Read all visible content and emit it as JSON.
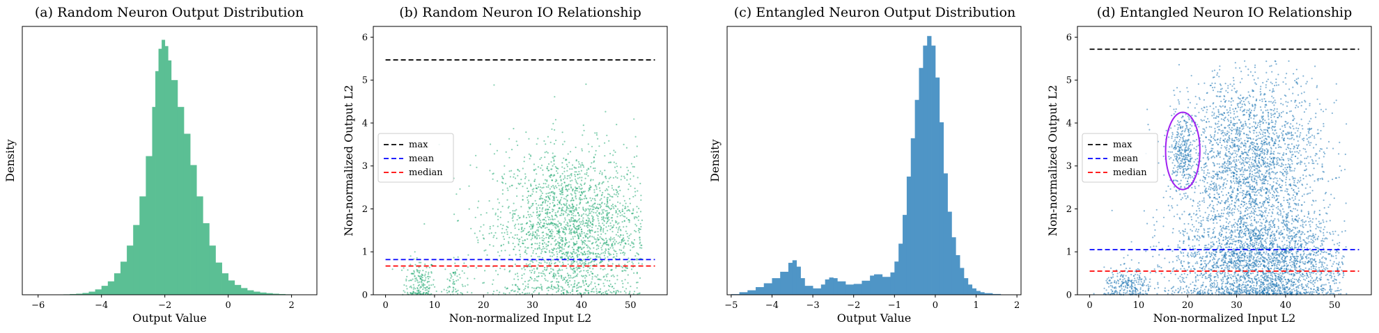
{
  "chart_data": [
    {
      "type": "histogram",
      "title": "(a) Random Neuron Output Distribution",
      "xlabel": "Output Value",
      "ylabel": "Density",
      "xlim": [
        -6.5,
        2.8
      ],
      "xticks": [
        "−6",
        "−4",
        "−2",
        "0",
        "2"
      ],
      "xtick_values": [
        -6,
        -4,
        -2,
        0,
        2
      ],
      "yticks": [],
      "color": "#5bbf94",
      "distribution": {
        "peak_x": -2.1,
        "range": [
          -5.5,
          2.3
        ],
        "description": "unimodal, slight right tail"
      },
      "bins": [
        [
          -5.5,
          0.002
        ],
        [
          -5.2,
          0.005
        ],
        [
          -5.0,
          0.008
        ],
        [
          -4.8,
          0.012
        ],
        [
          -4.6,
          0.02
        ],
        [
          -4.4,
          0.035
        ],
        [
          -4.2,
          0.06
        ],
        [
          -4.0,
          0.1
        ],
        [
          -3.8,
          0.15
        ],
        [
          -3.6,
          0.24
        ],
        [
          -3.4,
          0.37
        ],
        [
          -3.2,
          0.55
        ],
        [
          -3.0,
          0.78
        ],
        [
          -2.8,
          1.1
        ],
        [
          -2.6,
          1.55
        ],
        [
          -2.4,
          2.1
        ],
        [
          -2.3,
          2.5
        ],
        [
          -2.2,
          2.75
        ],
        [
          -2.1,
          2.85
        ],
        [
          -2.0,
          2.78
        ],
        [
          -1.9,
          2.62
        ],
        [
          -1.8,
          2.4
        ],
        [
          -1.6,
          2.1
        ],
        [
          -1.4,
          1.8
        ],
        [
          -1.2,
          1.45
        ],
        [
          -1.0,
          1.1
        ],
        [
          -0.8,
          0.8
        ],
        [
          -0.6,
          0.55
        ],
        [
          -0.4,
          0.36
        ],
        [
          -0.2,
          0.24
        ],
        [
          0.0,
          0.16
        ],
        [
          0.2,
          0.11
        ],
        [
          0.4,
          0.075
        ],
        [
          0.6,
          0.05
        ],
        [
          0.8,
          0.035
        ],
        [
          1.0,
          0.025
        ],
        [
          1.2,
          0.018
        ],
        [
          1.4,
          0.012
        ],
        [
          1.6,
          0.008
        ],
        [
          1.8,
          0.005
        ],
        [
          2.0,
          0.003
        ],
        [
          2.2,
          0.002
        ]
      ],
      "ylim": [
        0,
        3.0
      ]
    },
    {
      "type": "scatter",
      "title": "(b) Random Neuron IO Relationship",
      "xlabel": "Non-normalized Input L2",
      "ylabel": "Non-normalized Output L2",
      "xlim": [
        -2.5,
        57.5
      ],
      "ylim": [
        0,
        6.25
      ],
      "xticks": [
        "0",
        "10",
        "20",
        "30",
        "40",
        "50"
      ],
      "xtick_values": [
        0,
        10,
        20,
        30,
        40,
        50
      ],
      "yticks": [
        "0",
        "1",
        "2",
        "3",
        "4",
        "5",
        "6"
      ],
      "ytick_values": [
        0,
        1,
        2,
        3,
        4,
        5,
        6
      ],
      "color": "#22aa72",
      "hlines": [
        {
          "label": "max",
          "y": 5.47,
          "color": "#000000"
        },
        {
          "label": "mean",
          "y": 0.82,
          "color": "#0000ff"
        },
        {
          "label": "median",
          "y": 0.67,
          "color": "#ff0000"
        }
      ],
      "hline_xrange": [
        0,
        55
      ],
      "legend": [
        "max",
        "mean",
        "median"
      ],
      "legend_position": "center-left",
      "clusters": [
        {
          "x_center": 7,
          "x_spread": 1.6,
          "y_center": 0.25,
          "y_spread": 0.3,
          "n": 180
        },
        {
          "x_center": 14,
          "x_spread": 1.0,
          "y_center": 0.3,
          "y_spread": 0.25,
          "n": 60
        },
        {
          "x_center": 38,
          "x_spread": 8,
          "y_center": 1.5,
          "y_spread": 0.95,
          "n": 2400
        }
      ]
    },
    {
      "type": "histogram",
      "title": "(c) Entangled Neuron Output Distribution",
      "xlabel": "Output Value",
      "ylabel": "Density",
      "xlim": [
        -5.1,
        2.1
      ],
      "xticks": [
        "−5",
        "−4",
        "−3",
        "−2",
        "−1",
        "0",
        "1",
        "2"
      ],
      "xtick_values": [
        -5,
        -4,
        -3,
        -2,
        -1,
        0,
        1,
        2
      ],
      "yticks": [],
      "color": "#4f95c6",
      "distribution": {
        "peak_x": -0.2,
        "secondary_peaks": [
          -3.5,
          -2.6,
          -1.5
        ],
        "description": "multimodal, dominant peak near -0.2"
      },
      "bins": [
        [
          -5.0,
          0.01
        ],
        [
          -4.8,
          0.04
        ],
        [
          -4.6,
          0.07
        ],
        [
          -4.4,
          0.12
        ],
        [
          -4.2,
          0.18
        ],
        [
          -4.0,
          0.26
        ],
        [
          -3.8,
          0.36
        ],
        [
          -3.6,
          0.5
        ],
        [
          -3.5,
          0.54
        ],
        [
          -3.4,
          0.44
        ],
        [
          -3.3,
          0.26
        ],
        [
          -3.2,
          0.14
        ],
        [
          -3.0,
          0.1
        ],
        [
          -2.8,
          0.16
        ],
        [
          -2.7,
          0.24
        ],
        [
          -2.6,
          0.27
        ],
        [
          -2.5,
          0.26
        ],
        [
          -2.4,
          0.21
        ],
        [
          -2.2,
          0.16
        ],
        [
          -2.0,
          0.17
        ],
        [
          -1.8,
          0.22
        ],
        [
          -1.6,
          0.3
        ],
        [
          -1.5,
          0.32
        ],
        [
          -1.4,
          0.32
        ],
        [
          -1.3,
          0.28
        ],
        [
          -1.1,
          0.35
        ],
        [
          -1.0,
          0.52
        ],
        [
          -0.9,
          0.8
        ],
        [
          -0.8,
          1.25
        ],
        [
          -0.7,
          1.85
        ],
        [
          -0.6,
          2.45
        ],
        [
          -0.5,
          3.05
        ],
        [
          -0.4,
          3.55
        ],
        [
          -0.3,
          3.9
        ],
        [
          -0.2,
          4.05
        ],
        [
          -0.1,
          3.9
        ],
        [
          0.0,
          3.4
        ],
        [
          0.1,
          2.7
        ],
        [
          0.2,
          1.9
        ],
        [
          0.3,
          1.3
        ],
        [
          0.4,
          0.9
        ],
        [
          0.5,
          0.62
        ],
        [
          0.6,
          0.42
        ],
        [
          0.7,
          0.26
        ],
        [
          0.8,
          0.16
        ],
        [
          0.9,
          0.1
        ],
        [
          1.0,
          0.06
        ],
        [
          1.1,
          0.04
        ],
        [
          1.2,
          0.025
        ],
        [
          1.4,
          0.012
        ],
        [
          1.6,
          0.005
        ]
      ],
      "ylim": [
        0,
        4.2
      ]
    },
    {
      "type": "scatter",
      "title": "(d) Entangled Neuron IO Relationship",
      "xlabel": "Non-normalized Input L2",
      "ylabel": "Non-normalized Output L2",
      "xlim": [
        -2.5,
        57.5
      ],
      "ylim": [
        0,
        6.25
      ],
      "xticks": [
        "0",
        "10",
        "20",
        "30",
        "40",
        "50"
      ],
      "xtick_values": [
        0,
        10,
        20,
        30,
        40,
        50
      ],
      "yticks": [
        "0",
        "1",
        "2",
        "3",
        "4",
        "5",
        "6"
      ],
      "ytick_values": [
        0,
        1,
        2,
        3,
        4,
        5,
        6
      ],
      "color": "#1f77b4",
      "hlines": [
        {
          "label": "max",
          "y": 5.72,
          "color": "#000000"
        },
        {
          "label": "mean",
          "y": 1.05,
          "color": "#0000ff"
        },
        {
          "label": "median",
          "y": 0.55,
          "color": "#ff0000"
        }
      ],
      "hline_xrange": [
        0,
        55
      ],
      "legend": [
        "max",
        "mean",
        "median"
      ],
      "legend_position": "center-left",
      "annotation": {
        "type": "ellipse",
        "x_center": 19,
        "y_center": 3.35,
        "x_radius": 3.5,
        "y_radius": 0.9,
        "color": "#a020f0"
      },
      "clusters": [
        {
          "x_center": 8,
          "x_spread": 2.5,
          "y_center": 0.2,
          "y_spread": 0.2,
          "n": 250
        },
        {
          "x_center": 19,
          "x_spread": 1.4,
          "y_center": 3.3,
          "y_spread": 0.45,
          "n": 320
        },
        {
          "x_center": 33,
          "x_spread": 7,
          "y_center": 3.0,
          "y_spread": 1.1,
          "n": 2600
        },
        {
          "x_center": 35,
          "x_spread": 9,
          "y_center": 0.7,
          "y_spread": 0.6,
          "n": 2600
        }
      ]
    }
  ]
}
